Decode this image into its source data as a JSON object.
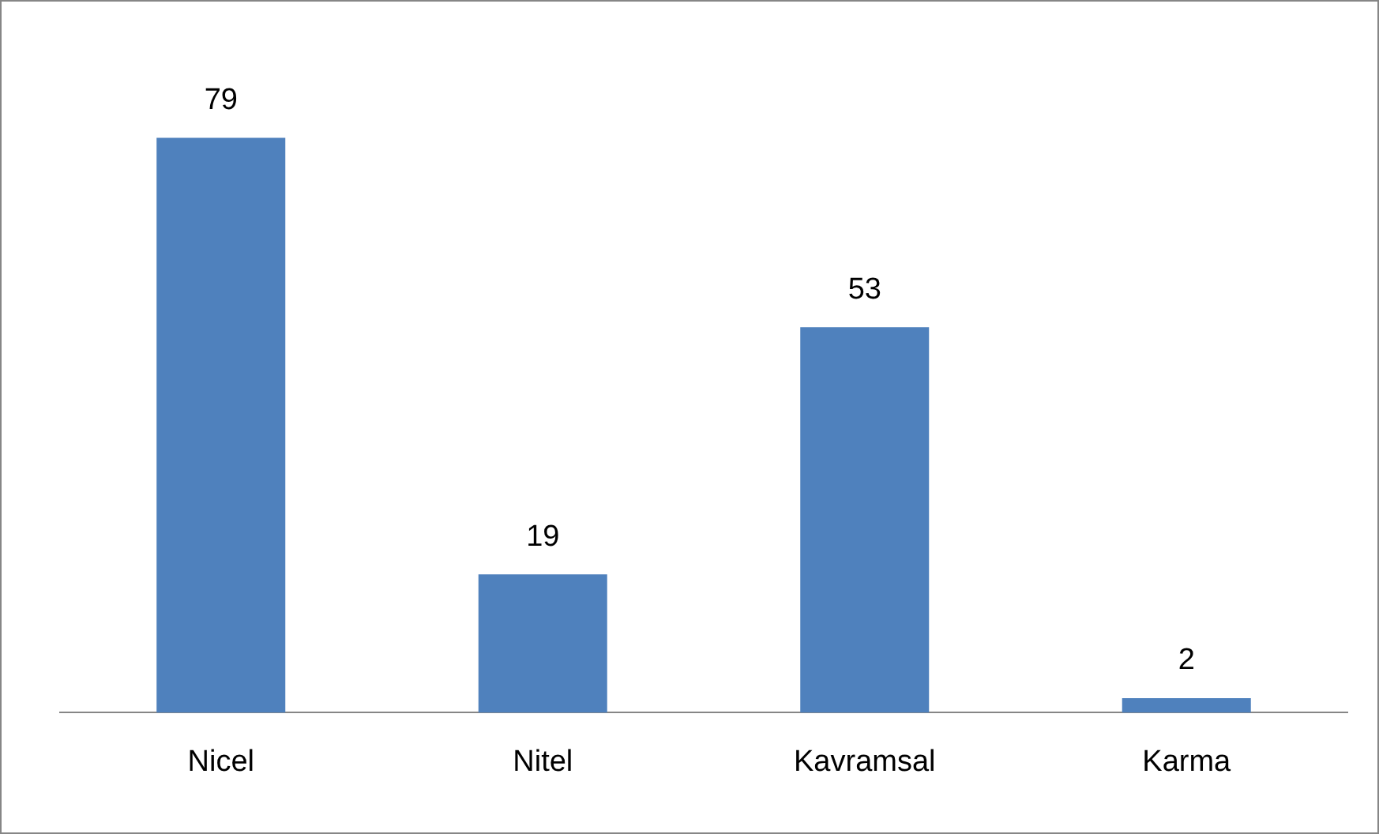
{
  "chart_data": {
    "type": "bar",
    "categories": [
      "Nicel",
      "Nitel",
      "Kavramsal",
      "Karma"
    ],
    "values": [
      79,
      19,
      53,
      2
    ],
    "color": "#4f81bd",
    "data_labels": true,
    "grid": false,
    "legend": false,
    "tick_labels": "x"
  }
}
